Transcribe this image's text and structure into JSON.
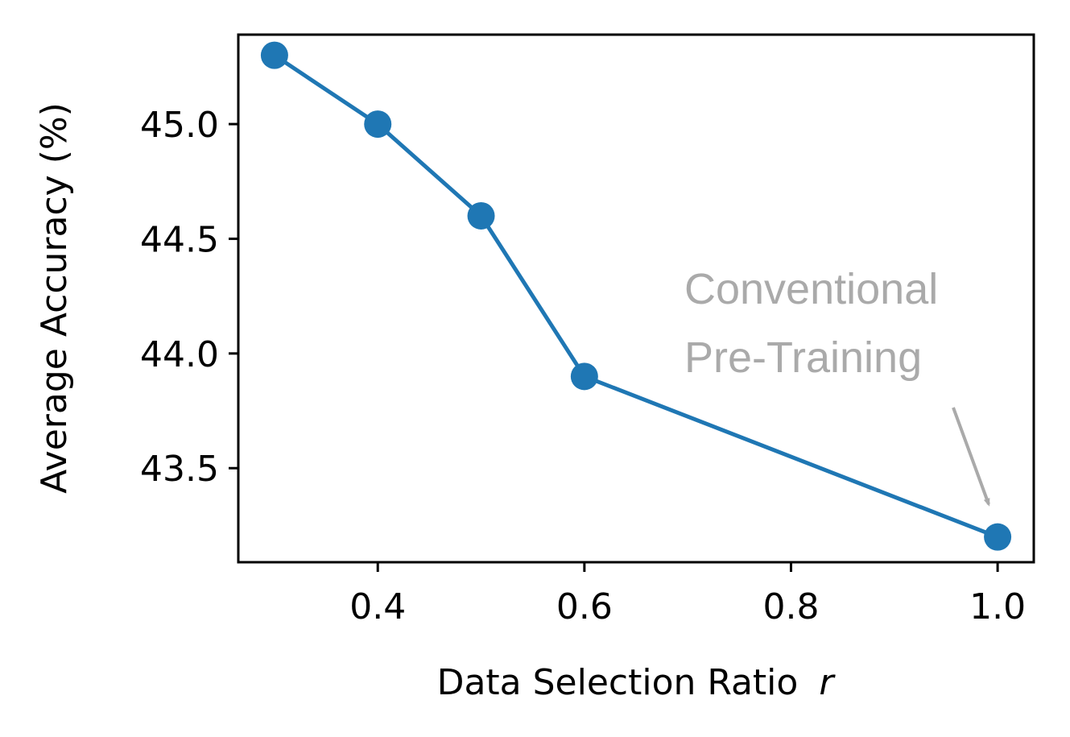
{
  "chart_data": {
    "type": "line",
    "title": "",
    "xlabel": "Data Selection Ratio",
    "xlabel_var": "r",
    "ylabel": "Average Accuracy (%)",
    "xlim": [
      0.265,
      1.035
    ],
    "ylim": [
      43.09,
      45.39
    ],
    "xticks": [
      0.4,
      0.6,
      0.8,
      1.0
    ],
    "xtick_labels": [
      "0.4",
      "0.6",
      "0.8",
      "1.0"
    ],
    "yticks": [
      43.5,
      44.0,
      44.5,
      45.0
    ],
    "ytick_labels": [
      "43.5",
      "44.0",
      "44.5",
      "45.0"
    ],
    "grid": false,
    "series": [
      {
        "color": "#1f77b4",
        "x": [
          0.3,
          0.4,
          0.5,
          0.6,
          1.0
        ],
        "y": [
          45.3,
          45.0,
          44.6,
          43.9,
          43.2
        ]
      }
    ],
    "annotation": {
      "lines": [
        "Conventional",
        "Pre-Training"
      ],
      "color": "#aaaaaa",
      "points_to": {
        "x": 1.0,
        "y": 43.2
      }
    }
  }
}
